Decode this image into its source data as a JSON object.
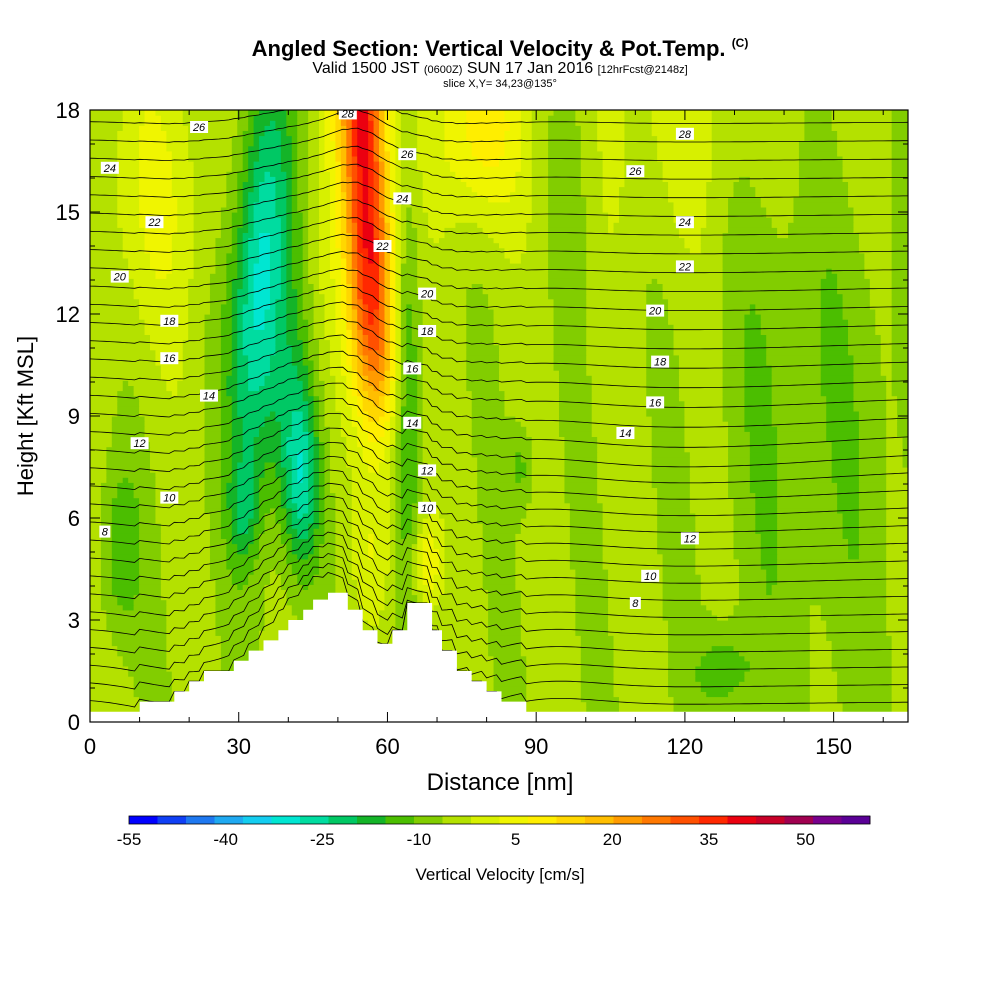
{
  "header": {
    "title_main": "Angled Section: Vertical Velocity & Pot.Temp.",
    "title_unit": "(C)",
    "valid_prefix": "Valid 1500 JST",
    "valid_zulu": "(0600Z)",
    "valid_date": "SUN 17 Jan 2016",
    "valid_fcst": "[12hrFcst@2148z]",
    "slice": "slice X,Y= 34,23@135°"
  },
  "colors": {
    "background": "#ffffff",
    "terrain": "#ffffff",
    "contour": "#000000",
    "palette": [
      "#0000ff",
      "#0f3ff5",
      "#1e78f0",
      "#1fa9f1",
      "#14cdf0",
      "#00e6d2",
      "#00dca0",
      "#00c864",
      "#14b428",
      "#4bbe00",
      "#82cd00",
      "#b4e100",
      "#d7f000",
      "#f0f500",
      "#ffee00",
      "#ffd700",
      "#ffbe00",
      "#ff9b00",
      "#ff7800",
      "#ff5000",
      "#ff2800",
      "#eb0010",
      "#c80028",
      "#a00050",
      "#78008c",
      "#5a0096"
    ]
  },
  "chart_data": {
    "type": "contour-section",
    "title": "Angled Section: Vertical Velocity & Pot.Temp. (C)",
    "subtitle": "Valid 1500 JST (0600Z) SUN 17 Jan 2016 [12hrFcst@2148z]",
    "slice_label": "slice X,Y= 34,23@135°",
    "xlabel": "Distance [nm]",
    "ylabel": "Height [Kft MSL]",
    "xlim": [
      0,
      165
    ],
    "ylim": [
      0,
      18
    ],
    "xticks": [
      0,
      30,
      60,
      90,
      120,
      150
    ],
    "yticks": [
      0,
      3,
      6,
      9,
      12,
      15,
      18
    ],
    "colorbar": {
      "label": "Vertical Velocity [cm/s]",
      "min": -55,
      "max": 55,
      "step": 5,
      "tick_labels": [
        "-55",
        "-40",
        "-25",
        "-10",
        "5",
        "20",
        "35",
        "50"
      ]
    },
    "terrain_profile": [
      [
        0,
        0.3
      ],
      [
        10,
        0.3
      ],
      [
        10,
        0.6
      ],
      [
        17,
        0.6
      ],
      [
        17,
        0.9
      ],
      [
        20,
        0.9
      ],
      [
        20,
        1.2
      ],
      [
        23,
        1.2
      ],
      [
        23,
        1.5
      ],
      [
        29,
        1.5
      ],
      [
        29,
        1.8
      ],
      [
        32,
        1.8
      ],
      [
        32,
        2.1
      ],
      [
        35,
        2.1
      ],
      [
        35,
        2.4
      ],
      [
        38,
        2.4
      ],
      [
        38,
        2.7
      ],
      [
        40,
        2.7
      ],
      [
        40,
        3.0
      ],
      [
        43,
        3.0
      ],
      [
        43,
        3.3
      ],
      [
        45,
        3.3
      ],
      [
        45,
        3.6
      ],
      [
        48,
        3.6
      ],
      [
        48,
        3.8
      ],
      [
        52,
        3.8
      ],
      [
        52,
        3.3
      ],
      [
        55,
        3.3
      ],
      [
        55,
        2.7
      ],
      [
        58,
        2.7
      ],
      [
        58,
        2.3
      ],
      [
        61,
        2.3
      ],
      [
        61,
        2.7
      ],
      [
        64,
        2.7
      ],
      [
        64,
        3.5
      ],
      [
        69,
        3.5
      ],
      [
        69,
        2.7
      ],
      [
        71,
        2.7
      ],
      [
        71,
        2.1
      ],
      [
        74,
        2.1
      ],
      [
        74,
        1.5
      ],
      [
        77,
        1.5
      ],
      [
        77,
        1.2
      ],
      [
        80,
        1.2
      ],
      [
        80,
        0.9
      ],
      [
        83,
        0.9
      ],
      [
        83,
        0.6
      ],
      [
        88,
        0.6
      ],
      [
        88,
        0.3
      ],
      [
        165,
        0.3
      ]
    ],
    "theta_contour_labels": [
      {
        "value": "8",
        "x": 3,
        "y": 5.6
      },
      {
        "value": "10",
        "x": 16,
        "y": 6.6
      },
      {
        "value": "12",
        "x": 10,
        "y": 8.2
      },
      {
        "value": "14",
        "x": 24,
        "y": 9.6
      },
      {
        "value": "16",
        "x": 16,
        "y": 10.7
      },
      {
        "value": "18",
        "x": 16,
        "y": 11.8
      },
      {
        "value": "20",
        "x": 6,
        "y": 13.1
      },
      {
        "value": "22",
        "x": 13,
        "y": 14.7
      },
      {
        "value": "24",
        "x": 4,
        "y": 16.3
      },
      {
        "value": "26",
        "x": 22,
        "y": 17.5
      },
      {
        "value": "28",
        "x": 52,
        "y": 17.9
      },
      {
        "value": "26",
        "x": 64,
        "y": 16.7
      },
      {
        "value": "24",
        "x": 63,
        "y": 15.4
      },
      {
        "value": "22",
        "x": 59,
        "y": 14.0
      },
      {
        "value": "20",
        "x": 68,
        "y": 12.6
      },
      {
        "value": "18",
        "x": 68,
        "y": 11.5
      },
      {
        "value": "16",
        "x": 65,
        "y": 10.4
      },
      {
        "value": "14",
        "x": 65,
        "y": 8.8
      },
      {
        "value": "12",
        "x": 68,
        "y": 7.4
      },
      {
        "value": "10",
        "x": 68,
        "y": 6.3
      },
      {
        "value": "28",
        "x": 120,
        "y": 17.3
      },
      {
        "value": "26",
        "x": 110,
        "y": 16.2
      },
      {
        "value": "24",
        "x": 120,
        "y": 14.7
      },
      {
        "value": "22",
        "x": 120,
        "y": 13.4
      },
      {
        "value": "20",
        "x": 114,
        "y": 12.1
      },
      {
        "value": "18",
        "x": 115,
        "y": 10.6
      },
      {
        "value": "16",
        "x": 114,
        "y": 9.4
      },
      {
        "value": "14",
        "x": 108,
        "y": 8.5
      },
      {
        "value": "12",
        "x": 121,
        "y": 5.4
      },
      {
        "value": "10",
        "x": 113,
        "y": 4.3
      },
      {
        "value": "8",
        "x": 110,
        "y": 3.5
      }
    ]
  }
}
